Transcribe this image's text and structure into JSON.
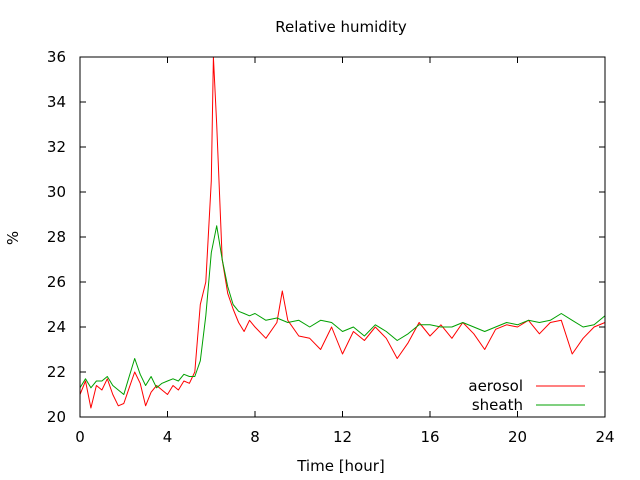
{
  "chart_data": {
    "type": "line",
    "title": "Relative humidity",
    "xlabel": "Time [hour]",
    "ylabel": "%",
    "xlim": [
      0,
      24
    ],
    "ylim": [
      20,
      36
    ],
    "xticks": [
      0,
      4,
      8,
      12,
      16,
      20,
      24
    ],
    "xtick_labels": [
      "0",
      "4",
      "8",
      "12",
      "16",
      "20",
      "24"
    ],
    "yticks": [
      20,
      22,
      24,
      26,
      28,
      30,
      32,
      34,
      36
    ],
    "ytick_labels": [
      "20",
      "22",
      "24",
      "26",
      "28",
      "30",
      "32",
      "34",
      "36"
    ],
    "grid": false,
    "legend_position": "bottom-right",
    "series": [
      {
        "name": "aerosol",
        "color": "#ff0000",
        "x": [
          0,
          0.25,
          0.5,
          0.75,
          1,
          1.25,
          1.5,
          1.75,
          2,
          2.25,
          2.5,
          2.75,
          3,
          3.25,
          3.5,
          3.75,
          4,
          4.25,
          4.5,
          4.75,
          5,
          5.25,
          5.5,
          5.75,
          6,
          6.1,
          6.25,
          6.5,
          6.75,
          7,
          7.25,
          7.5,
          7.75,
          8,
          8.5,
          9,
          9.25,
          9.5,
          10,
          10.5,
          11,
          11.5,
          12,
          12.5,
          13,
          13.5,
          14,
          14.5,
          15,
          15.5,
          16,
          16.5,
          17,
          17.5,
          18,
          18.5,
          19,
          19.5,
          20,
          20.5,
          21,
          21.5,
          22,
          22.5,
          23,
          23.5,
          24
        ],
        "values": [
          21.0,
          21.6,
          20.4,
          21.4,
          21.2,
          21.7,
          21.0,
          20.5,
          20.6,
          21.3,
          22.0,
          21.5,
          20.5,
          21.1,
          21.4,
          21.2,
          21.0,
          21.4,
          21.2,
          21.6,
          21.5,
          22.0,
          25.0,
          26.0,
          30.5,
          36.0,
          33.0,
          27.0,
          25.5,
          24.8,
          24.2,
          23.8,
          24.3,
          24.0,
          23.5,
          24.2,
          25.6,
          24.3,
          23.6,
          23.5,
          23.0,
          24.0,
          22.8,
          23.8,
          23.4,
          24.0,
          23.5,
          22.6,
          23.3,
          24.2,
          23.6,
          24.1,
          23.5,
          24.2,
          23.7,
          23.0,
          23.9,
          24.1,
          24.0,
          24.3,
          23.7,
          24.2,
          24.3,
          22.8,
          23.5,
          24.0,
          24.2
        ]
      },
      {
        "name": "sheath",
        "color": "#00a000",
        "x": [
          0,
          0.25,
          0.5,
          0.75,
          1,
          1.25,
          1.5,
          1.75,
          2,
          2.25,
          2.5,
          2.75,
          3,
          3.25,
          3.5,
          3.75,
          4,
          4.25,
          4.5,
          4.75,
          5,
          5.25,
          5.5,
          5.75,
          6,
          6.25,
          6.5,
          6.75,
          7,
          7.25,
          7.5,
          7.75,
          8,
          8.5,
          9,
          9.5,
          10,
          10.5,
          11,
          11.5,
          12,
          12.5,
          13,
          13.5,
          14,
          14.5,
          15,
          15.5,
          16,
          16.5,
          17,
          17.5,
          18,
          18.5,
          19,
          19.5,
          20,
          20.5,
          21,
          21.5,
          22,
          22.5,
          23,
          23.5,
          24
        ],
        "values": [
          21.3,
          21.7,
          21.3,
          21.6,
          21.6,
          21.8,
          21.4,
          21.2,
          21.0,
          21.8,
          22.6,
          21.9,
          21.4,
          21.8,
          21.3,
          21.5,
          21.6,
          21.7,
          21.6,
          21.9,
          21.8,
          21.8,
          22.5,
          24.5,
          27.3,
          28.5,
          27.0,
          25.8,
          25.0,
          24.7,
          24.6,
          24.5,
          24.6,
          24.3,
          24.4,
          24.2,
          24.3,
          24.0,
          24.3,
          24.2,
          23.8,
          24.0,
          23.6,
          24.1,
          23.8,
          23.4,
          23.7,
          24.1,
          24.1,
          24.0,
          24.0,
          24.2,
          24.0,
          23.8,
          24.0,
          24.2,
          24.1,
          24.3,
          24.2,
          24.3,
          24.6,
          24.3,
          24.0,
          24.1,
          24.5
        ]
      }
    ]
  }
}
